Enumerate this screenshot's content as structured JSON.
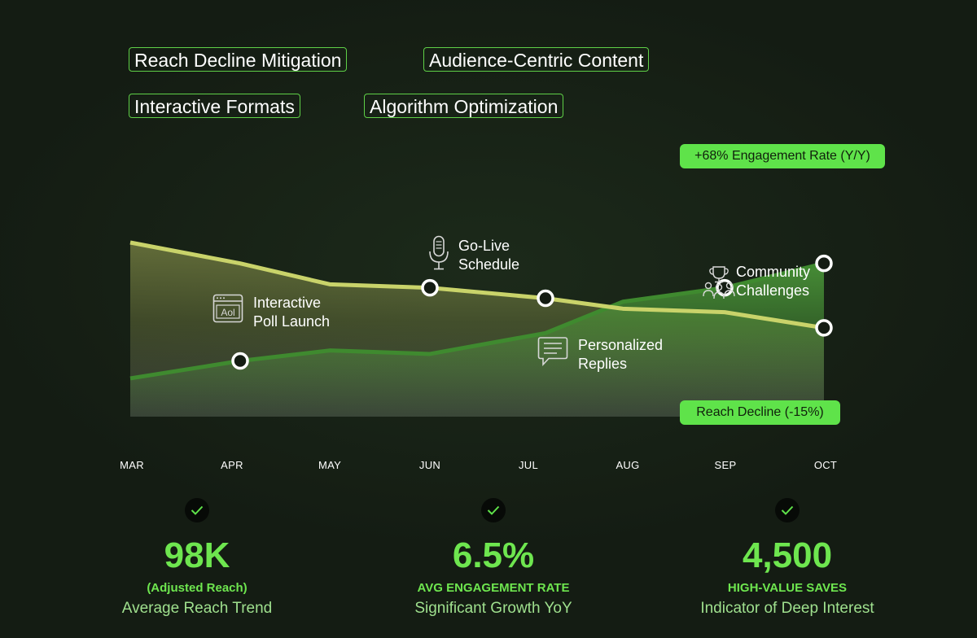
{
  "tags": [
    "Reach Decline Mitigation",
    "Audience-Centric Content",
    "Interactive Formats",
    "Algorithm Optimization"
  ],
  "pills": {
    "engagement": "+68% Engagement Rate (Y/Y)",
    "reach": "Reach Decline (-15%)"
  },
  "callouts": {
    "poll": {
      "label": "Interactive\nPoll Launch",
      "icon": "poll-window-icon"
    },
    "live": {
      "label": "Go-Live\nSchedule",
      "icon": "microphone-icon"
    },
    "replies": {
      "label": "Personalized\nReplies",
      "icon": "chat-bubble-icon"
    },
    "community": {
      "label": "Community\nChallenges",
      "icon": "trophy-group-icon"
    }
  },
  "chart_data": {
    "type": "area",
    "categories": [
      "MAR",
      "APR",
      "MAY",
      "JUN",
      "JUL",
      "AUG",
      "SEP",
      "OCT"
    ],
    "series": [
      {
        "role": "reach",
        "color": "#c9d36a",
        "values": [
          100,
          88,
          76,
          74,
          68,
          62,
          60,
          51
        ]
      },
      {
        "role": "engagement",
        "color": "#3f8a2f",
        "values": [
          22,
          32,
          38,
          36,
          48,
          66,
          74,
          88
        ]
      }
    ],
    "markers": [
      {
        "series": "engagement",
        "category": "APR"
      },
      {
        "series": "reach",
        "category": "JUN"
      },
      {
        "series": "reach",
        "category": "JUL"
      },
      {
        "series": "engagement",
        "category": "SEP"
      },
      {
        "series": "engagement",
        "category": "OCT"
      },
      {
        "series": "reach",
        "category": "OCT"
      }
    ],
    "ylim": [
      0,
      115
    ],
    "grid": false
  },
  "kpis": [
    {
      "value": "98K",
      "label": "(Adjusted Reach)",
      "sub": "Average Reach Trend",
      "icon": "check-icon"
    },
    {
      "value": "6.5%",
      "label": "AVG ENGAGEMENT RATE",
      "sub": "Significant Growth YoY",
      "icon": "check-icon"
    },
    {
      "value": "4,500",
      "label": "HIGH-VALUE SAVES",
      "sub": "Indicator of Deep Interest",
      "icon": "check-icon"
    }
  ],
  "colors": {
    "accent": "#5fe34a",
    "background": "#141c13",
    "reach_line": "#c9d36a",
    "engagement_line": "#3f8a2f"
  }
}
